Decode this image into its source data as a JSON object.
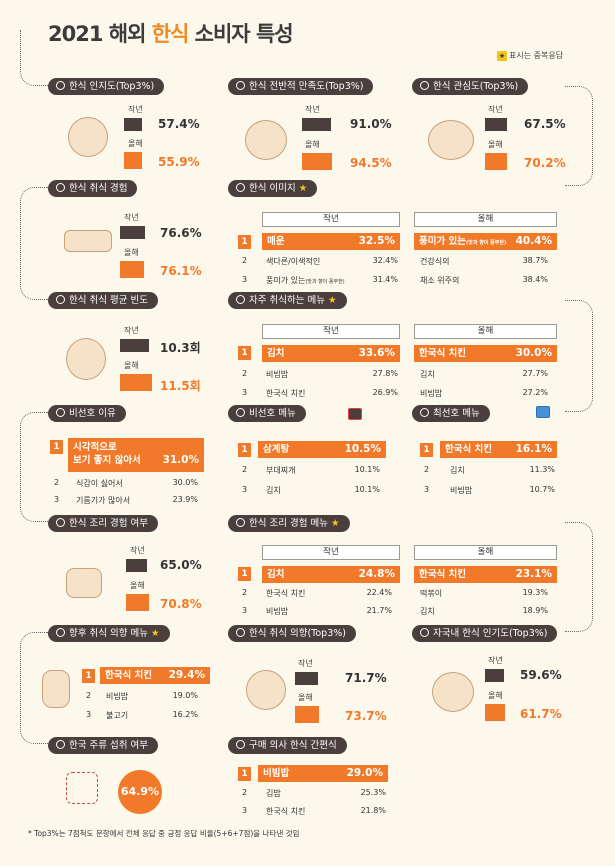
{
  "title": {
    "prefix": "2021 해외 ",
    "accent": "한식",
    "suffix": " 소비자 특성"
  },
  "legend": {
    "star": "★",
    "text": "표시는 중복응답"
  },
  "labels": {
    "last_year": "작년",
    "this_year": "올해"
  },
  "sections": {
    "awareness": {
      "title": "한식 인지도(Top3%)",
      "last": "57.4%",
      "last_pct": 57.4,
      "this": "55.9%",
      "this_pct": 55.9
    },
    "satisfaction": {
      "title": "한식 전반적 만족도(Top3%)",
      "last": "91.0%",
      "last_pct": 91.0,
      "this": "94.5%",
      "this_pct": 94.5
    },
    "interest": {
      "title": "한식 관심도(Top3%)",
      "last": "67.5%",
      "last_pct": 67.5,
      "this": "70.2%",
      "this_pct": 70.2
    },
    "experience": {
      "title": "한식 취식 경험",
      "last": "76.6%",
      "last_pct": 76.6,
      "this": "76.1%",
      "this_pct": 76.1
    },
    "image": {
      "title": "한식 이미지",
      "star": "★",
      "last_header": "작년",
      "this_header": "올해",
      "last": [
        {
          "rank": "1",
          "item": "매운",
          "pct": "32.5%"
        },
        {
          "rank": "2",
          "item": "색다른/이색적인",
          "pct": "32.4%"
        },
        {
          "rank": "3",
          "item": "풍미가 있는",
          "note": "(맛과 향이 풍부한)",
          "pct": "31.4%"
        }
      ],
      "this": [
        {
          "item": "풍미가 있는",
          "note": "(맛과 향이 풍부한)",
          "pct": "40.4%"
        },
        {
          "item": "건강식의",
          "pct": "38.7%"
        },
        {
          "item": "채소 위주의",
          "pct": "38.4%"
        }
      ]
    },
    "frequency": {
      "title": "한식 취식 평균 빈도",
      "last": "10.3회",
      "last_val": 10.3,
      "this": "11.5회",
      "this_val": 11.5
    },
    "frequent_menu": {
      "title": "자주 취식하는 메뉴",
      "star": "★",
      "last_header": "작년",
      "this_header": "올해",
      "last": [
        {
          "rank": "1",
          "item": "김치",
          "pct": "33.6%"
        },
        {
          "rank": "2",
          "item": "비빔밥",
          "pct": "27.8%"
        },
        {
          "rank": "3",
          "item": "한국식 치킨",
          "pct": "26.9%"
        }
      ],
      "this": [
        {
          "item": "한국식 치킨",
          "pct": "30.0%"
        },
        {
          "item": "김치",
          "pct": "27.7%"
        },
        {
          "item": "비빔밥",
          "pct": "27.2%"
        }
      ]
    },
    "dislike_reason": {
      "title": "비선호 이유",
      "items": [
        {
          "rank": "1",
          "item_line1": "시각적으로",
          "item_line2": "보기 좋지 않아서",
          "pct": "31.0%"
        },
        {
          "rank": "2",
          "item": "식감이 싫어서",
          "pct": "30.0%"
        },
        {
          "rank": "3",
          "item": "기름기가 많아서",
          "pct": "23.9%"
        }
      ]
    },
    "dislike_menu": {
      "title": "비선호 메뉴",
      "items": [
        {
          "rank": "1",
          "item": "삼계탕",
          "pct": "10.5%"
        },
        {
          "rank": "2",
          "item": "부대찌개",
          "pct": "10.1%"
        },
        {
          "rank": "3",
          "item": "김치",
          "pct": "10.1%"
        }
      ]
    },
    "favorite_menu": {
      "title": "최선호 메뉴",
      "items": [
        {
          "rank": "1",
          "item": "한국식 치킨",
          "pct": "16.1%"
        },
        {
          "rank": "2",
          "item": "김치",
          "pct": "11.3%"
        },
        {
          "rank": "3",
          "item": "비빔밥",
          "pct": "10.7%"
        }
      ]
    },
    "cooking_exp": {
      "title": "한식 조리 경험 여부",
      "last": "65.0%",
      "last_pct": 65.0,
      "this": "70.8%",
      "this_pct": 70.8
    },
    "cooking_menu": {
      "title": "한식 조리 경험 메뉴",
      "star": "★",
      "last_header": "작년",
      "this_header": "올해",
      "last": [
        {
          "rank": "1",
          "item": "김치",
          "pct": "24.8%"
        },
        {
          "rank": "2",
          "item": "한국식 치킨",
          "pct": "22.4%"
        },
        {
          "rank": "3",
          "item": "비빔밥",
          "pct": "21.7%"
        }
      ],
      "this": [
        {
          "item": "한국식 치킨",
          "pct": "23.1%"
        },
        {
          "item": "떡볶이",
          "pct": "19.3%"
        },
        {
          "item": "김치",
          "pct": "18.9%"
        }
      ]
    },
    "future_menu": {
      "title": "향후 취식 의향 메뉴",
      "star": "★",
      "items": [
        {
          "rank": "1",
          "item": "한국식 치킨",
          "pct": "29.4%"
        },
        {
          "rank": "2",
          "item": "비빔밥",
          "pct": "19.0%"
        },
        {
          "rank": "3",
          "item": "불고기",
          "pct": "16.2%"
        }
      ]
    },
    "future_intent": {
      "title": "한식 취식 의향(Top3%)",
      "last": "71.7%",
      "last_pct": 71.7,
      "this": "73.7%",
      "this_pct": 73.7
    },
    "popularity": {
      "title": "자국내 한식 인기도(Top3%)",
      "last": "59.6%",
      "last_pct": 59.6,
      "this": "61.7%",
      "this_pct": 61.7
    },
    "alcohol": {
      "title": "한국 주류 섭취 여부",
      "value": "64.9%"
    },
    "purchase": {
      "title": "구매 의사 한식 간편식",
      "items": [
        {
          "rank": "1",
          "item": "비빔밥",
          "pct": "29.0%"
        },
        {
          "rank": "2",
          "item": "김밥",
          "pct": "25.3%"
        },
        {
          "rank": "3",
          "item": "한국식 치킨",
          "pct": "21.8%"
        }
      ]
    }
  },
  "footnote": "* Top3%는 7점척도 문항에서 전체 응답 중 긍정 응답 비율(5+6+7점)을 나타낸 것임",
  "colors": {
    "accent": "#f07a2a",
    "dark": "#4a3f3c",
    "star": "#f5c518",
    "background": "#fcf8ec"
  }
}
